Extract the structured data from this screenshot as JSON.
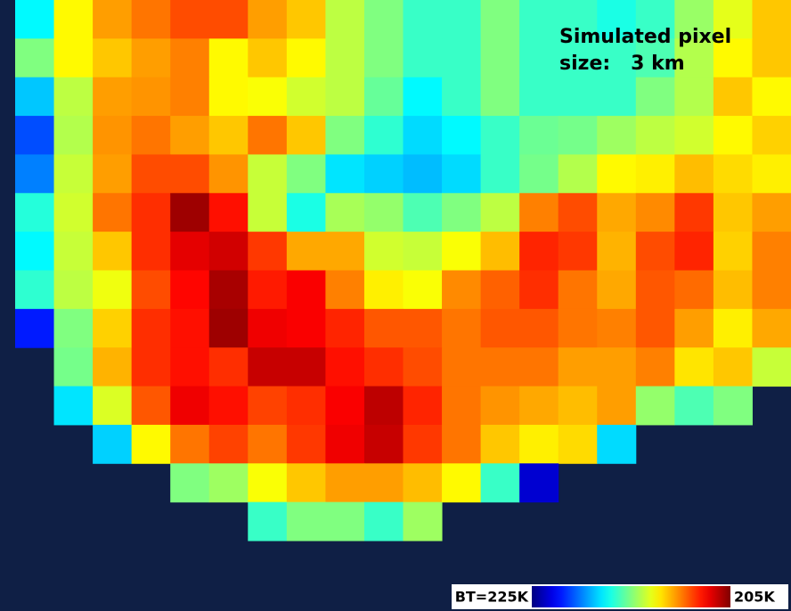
{
  "chart_data": {
    "type": "heatmap",
    "colormap": "jet",
    "background": "#0f1f45",
    "annotation": [
      "Simulated pixel",
      "size:   3 km"
    ],
    "clim": [
      225,
      205
    ],
    "cticks": [
      {
        "value": 225,
        "label": "BT=225K"
      },
      {
        "value": 205,
        "label": "205K"
      }
    ],
    "values": [
      [
        217.6,
        212.4,
        210.6,
        209.8,
        209,
        209,
        210.6,
        211.4,
        213.8,
        215,
        216.4,
        216.4,
        215,
        216.4,
        216.4,
        217,
        216.4,
        214.5,
        213,
        211.4
      ],
      [
        215,
        212.4,
        211.4,
        210.6,
        210,
        212.4,
        211.4,
        212.4,
        213.8,
        215,
        216.4,
        216.4,
        215,
        216.4,
        216.4,
        216.4,
        216,
        214,
        212.4,
        211.4
      ],
      [
        218.6,
        213.8,
        210.6,
        210.4,
        210,
        212.4,
        212.6,
        213.4,
        213.8,
        215.5,
        217.6,
        216.4,
        215,
        216.4,
        216.4,
        216.4,
        215,
        214,
        211.4,
        212.4
      ],
      [
        221,
        214,
        210.4,
        209.8,
        210.6,
        211.4,
        209.8,
        211.4,
        215,
        216.6,
        218.2,
        217.6,
        216.4,
        215.4,
        215.2,
        214.4,
        213.8,
        213.4,
        212.4,
        211.6
      ],
      [
        220,
        213.6,
        210.6,
        209,
        209,
        210.4,
        213.6,
        215,
        218,
        218.4,
        218.8,
        218.2,
        216.4,
        215.2,
        214,
        212.4,
        212.2,
        211.2,
        211.8,
        212.2
      ],
      [
        216.8,
        213.4,
        209.8,
        208.4,
        205.6,
        207.8,
        213.6,
        217,
        214.2,
        214.6,
        216,
        215,
        213.8,
        210,
        209,
        210.8,
        210.2,
        208.6,
        211.4,
        210.6
      ],
      [
        217.6,
        213.6,
        211.4,
        208.4,
        207,
        206.6,
        208.6,
        210.8,
        210.8,
        213.4,
        213.6,
        212.6,
        211.2,
        208.2,
        208.6,
        211,
        209,
        208.2,
        211.6,
        210
      ],
      [
        216.6,
        213.8,
        212.8,
        209,
        207.6,
        205.8,
        208,
        207.4,
        210,
        212.2,
        212.6,
        210.2,
        209.4,
        208.4,
        209.8,
        210.8,
        209.2,
        209.6,
        211.2,
        210
      ],
      [
        222,
        215,
        211.6,
        208.4,
        207.8,
        205.6,
        207.2,
        207.4,
        208.2,
        209.2,
        209.2,
        209.8,
        209.2,
        209.2,
        209.8,
        210,
        209.2,
        210.6,
        212.2,
        210.8
      ],
      [
        null,
        215.2,
        211,
        208.4,
        207.8,
        208.4,
        206.4,
        206.4,
        207.8,
        208.4,
        209,
        209.8,
        209.8,
        209.8,
        210.6,
        210.6,
        210,
        212,
        211.4,
        213.6
      ],
      [
        null,
        218,
        213.2,
        209.2,
        207.2,
        207.8,
        208.8,
        208.4,
        207.4,
        206.2,
        208.2,
        209.8,
        210.4,
        210.8,
        211.2,
        210.6,
        214.6,
        216,
        215,
        null
      ],
      [
        null,
        null,
        218.4,
        212.4,
        209.8,
        208.8,
        209.8,
        208.6,
        207.2,
        206.4,
        208.6,
        209.8,
        211.4,
        212.2,
        211.8,
        218.2,
        null,
        null,
        null,
        null
      ],
      [
        null,
        null,
        null,
        null,
        215,
        214.4,
        212.6,
        211.4,
        210.6,
        210.6,
        211.2,
        212.4,
        216.4,
        223.4,
        null,
        null,
        null,
        null,
        null,
        null
      ],
      [
        null,
        null,
        null,
        null,
        null,
        null,
        216.4,
        215,
        215,
        216.4,
        214.4,
        null,
        null,
        null,
        null,
        null,
        null,
        null,
        null,
        null
      ]
    ]
  }
}
